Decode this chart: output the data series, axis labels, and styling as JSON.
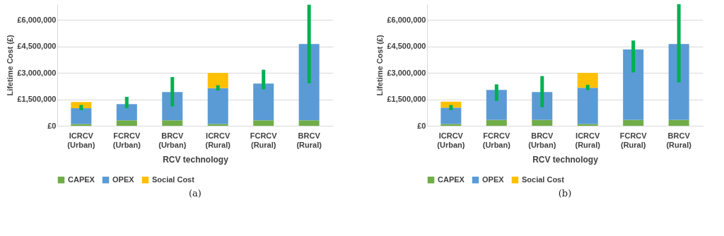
{
  "chart_data": [
    {
      "type": "bar",
      "stacked": true,
      "xlabel": "RCV technology",
      "ylabel": "Lifetime Cost (£)",
      "annotations": [
        "(a)"
      ],
      "categories": [
        "ICRCV (Urban)",
        "FCRCV (Urban)",
        "BRCV (Urban)",
        "ICRCV (Rural)",
        "FCRCV (Rural)",
        "BRCV (Rural)"
      ],
      "series": [
        {
          "name": "CAPEX",
          "color": "#70ad47",
          "values": [
            100000,
            310000,
            310000,
            100000,
            310000,
            310000
          ]
        },
        {
          "name": "OPEX",
          "color": "#5b9bd5",
          "values": [
            900000,
            920000,
            1610000,
            2040000,
            2090000,
            4330000
          ],
          "errors": [
            [
              980000,
              1080000
            ],
            [
              1100000,
              1540000
            ],
            [
              1200000,
              2670000
            ],
            [
              2100000,
              2200000
            ],
            [
              2170000,
              3080000
            ],
            [
              2510000,
              6770000
            ]
          ]
        },
        {
          "name": "Social Cost",
          "color": "#ffc000",
          "values": [
            350000,
            0,
            0,
            860000,
            0,
            0
          ]
        }
      ],
      "ylim": [
        0,
        6900000
      ],
      "yticks": [
        {
          "value": 0,
          "label": "£0"
        },
        {
          "value": 1500000,
          "label": "£1,500,000"
        },
        {
          "value": 3000000,
          "label": "£3,000,000"
        },
        {
          "value": 4500000,
          "label": "£4,500,000"
        },
        {
          "value": 6000000,
          "label": "£6,000,000"
        }
      ],
      "grid": "y",
      "legend": "bottom"
    },
    {
      "type": "bar",
      "stacked": true,
      "xlabel": "RCV technology",
      "ylabel": "Lifetime Cost (£)",
      "annotations": [
        "(b)"
      ],
      "categories": [
        "ICRCV (Urban)",
        "FCRCV (Urban)",
        "BRCV (Urban)",
        "ICRCV (Rural)",
        "FCRCV (Rural)",
        "BRCV (Rural)"
      ],
      "series": [
        {
          "name": "CAPEX",
          "color": "#70ad47",
          "values": [
            100000,
            330000,
            330000,
            100000,
            330000,
            330000
          ]
        },
        {
          "name": "OPEX",
          "color": "#5b9bd5",
          "values": [
            930000,
            1710000,
            1590000,
            2060000,
            4000000,
            4310000
          ],
          "errors": [
            [
              990000,
              1080000
            ],
            [
              1510000,
              2250000
            ],
            [
              1150000,
              2720000
            ],
            [
              2130000,
              2220000
            ],
            [
              3130000,
              4740000
            ],
            [
              2560000,
              6800000
            ]
          ]
        },
        {
          "name": "Social Cost",
          "color": "#ffc000",
          "values": [
            340000,
            0,
            0,
            840000,
            0,
            0
          ]
        }
      ],
      "ylim": [
        0,
        6900000
      ],
      "yticks": [
        {
          "value": 0,
          "label": "£0"
        },
        {
          "value": 1500000,
          "label": "£1,500,000"
        },
        {
          "value": 3000000,
          "label": "£3,000,000"
        },
        {
          "value": 4500000,
          "label": "£4,500,000"
        },
        {
          "value": 6000000,
          "label": "£6,000,000"
        }
      ],
      "grid": "y",
      "legend": "bottom"
    }
  ]
}
